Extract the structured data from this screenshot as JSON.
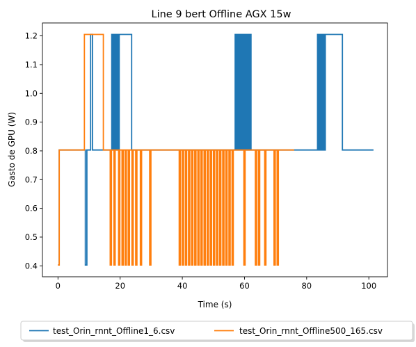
{
  "chart_data": {
    "type": "line",
    "title": "Line 9 bert Offline AGX 15w",
    "xlabel": "Time (s)",
    "ylabel": "Gasto de GPU (W)",
    "xlim": [
      -5,
      106
    ],
    "ylim": [
      0.362,
      1.245
    ],
    "xticks": [
      0,
      20,
      40,
      60,
      80,
      100
    ],
    "yticks": [
      0.4,
      0.5,
      0.6,
      0.7,
      0.8,
      0.9,
      1.0,
      1.1,
      1.2
    ],
    "ytick_labels": [
      "0.4",
      "0.5",
      "0.6",
      "0.7",
      "0.8",
      "0.9",
      "1.0",
      "1.1",
      "1.2"
    ],
    "legend_position": "bottom-center",
    "grid": false,
    "series": [
      {
        "name": "test_Orin_rnnt_Offline1_6.csv",
        "color": "#1f77b4",
        "x": [
          0,
          0.4,
          0.4,
          8.8,
          8.8,
          9.3,
          9.3,
          10.5,
          10.5,
          11.1,
          11.1,
          17.3,
          17.3,
          17.6,
          17.6,
          17.9,
          17.9,
          18.2,
          18.2,
          18.5,
          18.5,
          18.8,
          18.8,
          19.1,
          19.1,
          19.4,
          19.4,
          19.7,
          19.7,
          20.0,
          20.0,
          23.7,
          23.7,
          24.0,
          24.0,
          57.0,
          57.0,
          57.3,
          57.3,
          57.6,
          57.6,
          57.9,
          57.9,
          58.2,
          58.2,
          58.5,
          58.5,
          58.8,
          58.8,
          59.1,
          59.1,
          59.4,
          59.4,
          59.7,
          59.7,
          60.0,
          60.0,
          60.3,
          60.3,
          60.6,
          60.6,
          60.9,
          60.9,
          61.2,
          61.2,
          61.5,
          61.5,
          61.8,
          61.8,
          62.1,
          62.1,
          83.5,
          83.5,
          83.8,
          83.8,
          84.1,
          84.1,
          84.4,
          84.4,
          84.7,
          84.7,
          85.0,
          85.0,
          85.3,
          85.3,
          85.6,
          85.6,
          86.0,
          86.0,
          91.5,
          91.5,
          101.5
        ],
        "y": [
          0.403,
          0.403,
          0.803,
          0.803,
          0.403,
          0.403,
          0.803,
          0.803,
          1.205,
          1.205,
          0.803,
          0.803,
          1.205,
          1.205,
          0.803,
          0.803,
          1.205,
          1.205,
          0.803,
          0.803,
          1.205,
          1.205,
          0.803,
          0.803,
          1.205,
          1.205,
          0.803,
          0.803,
          1.205,
          1.205,
          1.205,
          1.205,
          0.803,
          0.803,
          0.803,
          0.803,
          1.205,
          1.205,
          0.803,
          0.803,
          1.205,
          1.205,
          0.803,
          0.803,
          1.205,
          1.205,
          0.803,
          0.803,
          1.205,
          1.205,
          0.803,
          0.803,
          1.205,
          1.205,
          0.803,
          0.803,
          1.205,
          1.205,
          0.803,
          0.803,
          1.205,
          1.205,
          0.803,
          0.803,
          1.205,
          1.205,
          0.803,
          0.803,
          1.205,
          1.205,
          0.803,
          0.803,
          1.205,
          1.205,
          0.803,
          0.803,
          1.205,
          1.205,
          0.803,
          0.803,
          1.205,
          1.205,
          0.803,
          0.803,
          1.205,
          1.205,
          0.803,
          0.803,
          1.205,
          1.205,
          0.803,
          0.803
        ]
      },
      {
        "name": "test_Orin_rnnt_Offline500_165.csv",
        "color": "#ff7f0e",
        "x": [
          0,
          0.4,
          0.4,
          8.5,
          8.5,
          14.6,
          14.6,
          16.8,
          16.8,
          17.2,
          17.2,
          18.0,
          18.0,
          18.4,
          18.4,
          19.5,
          19.5,
          19.9,
          19.9,
          20.6,
          20.6,
          21.0,
          21.0,
          21.6,
          21.6,
          22.0,
          22.0,
          22.6,
          22.6,
          23.0,
          23.0,
          23.8,
          23.8,
          24.2,
          24.2,
          25.0,
          25.0,
          25.4,
          25.4,
          26.5,
          26.5,
          26.9,
          26.9,
          29.5,
          29.5,
          29.9,
          29.9,
          39.0,
          39.0,
          39.4,
          39.4,
          40.0,
          40.0,
          40.4,
          40.4,
          41.0,
          41.0,
          41.4,
          41.4,
          42.0,
          42.0,
          42.4,
          42.4,
          43.0,
          43.0,
          43.4,
          43.4,
          44.0,
          44.0,
          44.4,
          44.4,
          45.0,
          45.0,
          45.4,
          45.4,
          46.0,
          46.0,
          46.4,
          46.4,
          47.0,
          47.0,
          47.4,
          47.4,
          48.0,
          48.0,
          48.4,
          48.4,
          49.0,
          49.0,
          49.4,
          49.4,
          50.0,
          50.0,
          50.4,
          50.4,
          51.0,
          51.0,
          51.4,
          51.4,
          52.0,
          52.0,
          52.4,
          52.4,
          53.0,
          53.0,
          53.4,
          53.4,
          54.0,
          54.0,
          54.4,
          54.4,
          55.0,
          55.0,
          55.4,
          55.4,
          56.0,
          56.0,
          56.4,
          56.4,
          59.8,
          59.8,
          60.2,
          60.2,
          63.5,
          63.5,
          63.9,
          63.9,
          64.5,
          64.5,
          64.9,
          64.9,
          66.5,
          66.5,
          66.9,
          66.9,
          69.5,
          69.5,
          69.9,
          69.9,
          70.5,
          70.5,
          70.9,
          70.9,
          76.0
        ],
        "y": [
          0.403,
          0.403,
          0.803,
          0.803,
          1.205,
          1.205,
          0.803,
          0.803,
          0.403,
          0.403,
          0.803,
          0.803,
          0.403,
          0.403,
          0.803,
          0.803,
          0.403,
          0.403,
          0.803,
          0.803,
          0.403,
          0.403,
          0.803,
          0.803,
          0.403,
          0.403,
          0.803,
          0.803,
          0.403,
          0.403,
          0.803,
          0.803,
          0.403,
          0.403,
          0.803,
          0.803,
          0.403,
          0.403,
          0.803,
          0.803,
          0.403,
          0.403,
          0.803,
          0.803,
          0.403,
          0.403,
          0.803,
          0.803,
          0.403,
          0.403,
          0.803,
          0.803,
          0.403,
          0.403,
          0.803,
          0.803,
          0.403,
          0.403,
          0.803,
          0.803,
          0.403,
          0.403,
          0.803,
          0.803,
          0.403,
          0.403,
          0.803,
          0.803,
          0.403,
          0.403,
          0.803,
          0.803,
          0.403,
          0.403,
          0.803,
          0.803,
          0.403,
          0.403,
          0.803,
          0.803,
          0.403,
          0.403,
          0.803,
          0.803,
          0.403,
          0.403,
          0.803,
          0.803,
          0.403,
          0.403,
          0.803,
          0.803,
          0.403,
          0.403,
          0.803,
          0.803,
          0.403,
          0.403,
          0.803,
          0.803,
          0.403,
          0.403,
          0.803,
          0.803,
          0.403,
          0.403,
          0.803,
          0.803,
          0.403,
          0.403,
          0.803,
          0.803,
          0.403,
          0.403,
          0.803,
          0.803,
          0.403,
          0.403,
          0.803,
          0.803,
          0.403,
          0.403,
          0.803,
          0.803,
          0.403,
          0.403,
          0.803,
          0.803,
          0.403,
          0.403,
          0.803,
          0.803,
          0.403,
          0.403,
          0.803,
          0.803,
          0.403,
          0.403,
          0.803,
          0.803,
          0.403,
          0.403,
          0.803,
          0.803
        ]
      }
    ]
  }
}
